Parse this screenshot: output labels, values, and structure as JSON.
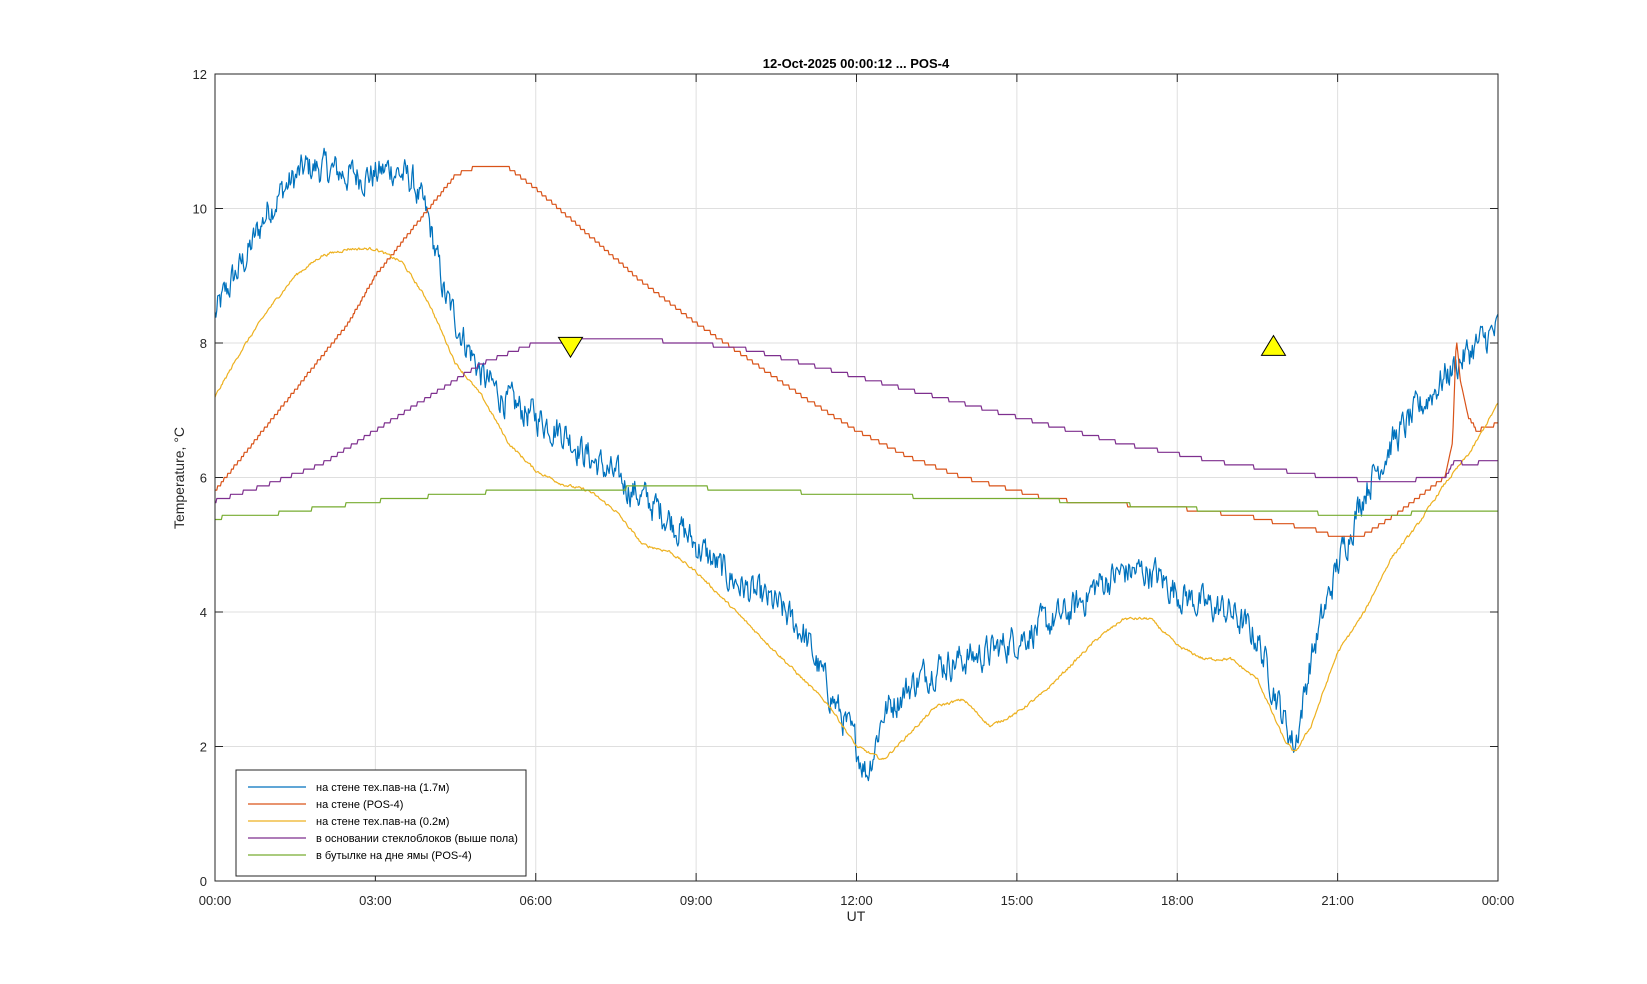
{
  "chart_data": {
    "type": "line",
    "title": "12-Oct-2025 00:00:12 ... POS-4",
    "xlabel": "UT",
    "ylabel": "Temperature, °C",
    "xlim": [
      0,
      24
    ],
    "ylim": [
      0,
      12
    ],
    "x_tick_values": [
      0,
      3,
      6,
      9,
      12,
      15,
      18,
      21,
      24
    ],
    "x_tick_labels": [
      "00:00",
      "03:00",
      "06:00",
      "09:00",
      "12:00",
      "15:00",
      "18:00",
      "21:00",
      "00:00"
    ],
    "y_tick_values": [
      0,
      2,
      4,
      6,
      8,
      10,
      12
    ],
    "y_tick_labels": [
      "0",
      "2",
      "4",
      "6",
      "8",
      "10",
      "12"
    ],
    "grid": true,
    "legend_position": "bottom-left",
    "markers": [
      {
        "name": "down-triangle",
        "x": 6.65,
        "y": 7.95,
        "color": "#ffff00"
      },
      {
        "name": "up-triangle",
        "x": 19.8,
        "y": 7.95,
        "color": "#ffff00"
      }
    ],
    "series": [
      {
        "name": "на стене тех.пав-на (1.7м)",
        "color": "#0072bd",
        "noise": 0.45,
        "x": [
          0,
          0.3,
          0.6,
          1.0,
          1.3,
          1.7,
          2.0,
          2.5,
          3.0,
          3.3,
          3.7,
          4.0,
          4.3,
          4.7,
          5.0,
          5.5,
          6.0,
          6.5,
          7.0,
          7.5,
          8.0,
          8.5,
          9.0,
          9.5,
          10.0,
          10.5,
          11.0,
          11.5,
          12.0,
          12.2,
          12.5,
          13.0,
          13.5,
          14.0,
          14.5,
          15.0,
          15.5,
          16.0,
          16.5,
          17.0,
          17.5,
          18.0,
          18.5,
          19.0,
          19.5,
          20.0,
          20.2,
          20.5,
          21.0,
          21.5,
          22.0,
          22.5,
          23.0,
          23.5,
          24.0
        ],
        "y": [
          8.4,
          8.9,
          9.3,
          10.0,
          10.3,
          10.6,
          10.6,
          10.5,
          10.5,
          10.6,
          10.4,
          9.8,
          8.7,
          8.0,
          7.5,
          7.1,
          6.9,
          6.7,
          6.3,
          6.0,
          5.7,
          5.4,
          5.0,
          4.6,
          4.3,
          4.1,
          3.7,
          2.8,
          2.0,
          1.6,
          2.5,
          2.9,
          3.2,
          3.3,
          3.4,
          3.6,
          3.8,
          4.0,
          4.4,
          4.6,
          4.6,
          4.3,
          4.1,
          4.0,
          3.6,
          2.4,
          2.0,
          3.3,
          4.7,
          5.8,
          6.5,
          7.0,
          7.5,
          7.9,
          8.2
        ]
      },
      {
        "name": "на стене (POS-4)",
        "color": "#d95319",
        "noise": 0,
        "x": [
          0,
          0.5,
          1.0,
          1.5,
          2.0,
          2.5,
          3.0,
          3.5,
          4.0,
          4.5,
          5.0,
          5.5,
          6.0,
          6.5,
          7.0,
          8.0,
          9.0,
          10.0,
          11.0,
          12.0,
          13.0,
          14.0,
          15.0,
          15.5,
          16.0,
          16.5,
          17.0,
          17.5,
          18.0,
          18.5,
          19.0,
          19.5,
          20.0,
          20.5,
          21.0,
          21.5,
          22.0,
          22.5,
          23.0,
          23.15,
          23.22,
          23.3,
          23.45,
          23.6,
          24.0
        ],
        "y": [
          5.8,
          6.3,
          6.8,
          7.3,
          7.8,
          8.3,
          9.0,
          9.5,
          10.0,
          10.5,
          10.65,
          10.6,
          10.3,
          9.95,
          9.6,
          8.9,
          8.3,
          7.75,
          7.2,
          6.7,
          6.3,
          6.0,
          5.8,
          5.7,
          5.65,
          5.6,
          5.6,
          5.55,
          5.55,
          5.5,
          5.45,
          5.4,
          5.3,
          5.25,
          5.1,
          5.15,
          5.4,
          5.7,
          6.0,
          6.5,
          8.1,
          7.4,
          6.9,
          6.7,
          6.8
        ]
      },
      {
        "name": "на стене тех.пав-на (0.2м)",
        "color": "#edb120",
        "noise": 0.04,
        "x": [
          0,
          0.5,
          1.0,
          1.5,
          2.0,
          2.5,
          3.0,
          3.5,
          4.0,
          4.5,
          5.0,
          5.5,
          6.0,
          6.5,
          7.0,
          7.5,
          8.0,
          8.5,
          9.0,
          9.5,
          10.0,
          10.5,
          11.0,
          11.5,
          12.0,
          12.5,
          13.0,
          13.5,
          14.0,
          14.5,
          15.0,
          15.5,
          16.0,
          16.5,
          17.0,
          17.5,
          18.0,
          18.5,
          19.0,
          19.5,
          20.0,
          20.2,
          20.5,
          21.0,
          21.5,
          22.0,
          22.5,
          23.0,
          23.5,
          24.0
        ],
        "y": [
          7.2,
          7.9,
          8.5,
          9.0,
          9.3,
          9.4,
          9.4,
          9.2,
          8.6,
          7.7,
          7.2,
          6.5,
          6.1,
          5.9,
          5.8,
          5.5,
          5.0,
          4.9,
          4.6,
          4.2,
          3.8,
          3.4,
          3.0,
          2.6,
          2.0,
          1.8,
          2.2,
          2.6,
          2.7,
          2.3,
          2.5,
          2.8,
          3.2,
          3.6,
          3.9,
          3.9,
          3.5,
          3.3,
          3.3,
          3.0,
          2.1,
          1.9,
          2.3,
          3.4,
          4.0,
          4.8,
          5.3,
          5.9,
          6.4,
          7.1
        ]
      },
      {
        "name": "в основании стеклоблоков (выше пола)",
        "color": "#7e2f8e",
        "noise": 0,
        "x": [
          0,
          1.0,
          2.0,
          3.0,
          4.0,
          5.0,
          6.0,
          7.0,
          8.0,
          9.0,
          10.0,
          11.0,
          12.0,
          13.0,
          14.0,
          15.0,
          16.0,
          17.0,
          18.0,
          19.0,
          20.0,
          21.0,
          22.0,
          22.5,
          23.0,
          23.2,
          23.4,
          24.0
        ],
        "y": [
          5.65,
          5.9,
          6.2,
          6.7,
          7.2,
          7.7,
          8.0,
          8.05,
          8.05,
          8.0,
          7.9,
          7.7,
          7.5,
          7.3,
          7.1,
          6.9,
          6.7,
          6.5,
          6.35,
          6.2,
          6.1,
          5.98,
          5.95,
          5.97,
          6.0,
          6.25,
          6.2,
          6.25
        ]
      },
      {
        "name": "в бутылке на дне ямы (POS-4)",
        "color": "#77ac30",
        "noise": 0,
        "x": [
          0,
          1.0,
          2.0,
          3.0,
          4.0,
          5.0,
          6.0,
          7.0,
          8.0,
          9.0,
          10.0,
          11.0,
          12.0,
          13.0,
          14.0,
          15.0,
          16.0,
          17.0,
          18.0,
          19.0,
          20.0,
          21.0,
          22.0,
          23.0,
          24.0
        ],
        "y": [
          5.4,
          5.45,
          5.55,
          5.65,
          5.72,
          5.78,
          5.8,
          5.83,
          5.85,
          5.85,
          5.82,
          5.78,
          5.75,
          5.72,
          5.7,
          5.68,
          5.65,
          5.6,
          5.55,
          5.5,
          5.5,
          5.45,
          5.45,
          5.5,
          5.5
        ]
      }
    ]
  }
}
